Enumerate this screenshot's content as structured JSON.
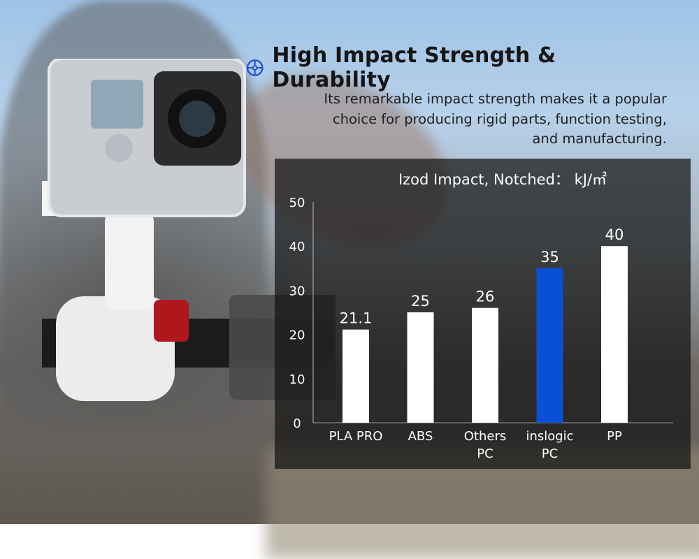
{
  "headline": {
    "text": "High Impact Strength & Durability",
    "icon": "bike-wheel-icon"
  },
  "description": {
    "lines": [
      "Its remarkable impact strength makes it a popular",
      "choice for producing rigid parts, function testing,",
      "and manufacturing."
    ]
  },
  "chart_data": {
    "type": "bar",
    "title": "Izod Impact, Notched： kJ/㎡",
    "categories": [
      [
        "PLA PRO"
      ],
      [
        "ABS"
      ],
      [
        "Others",
        "PC"
      ],
      [
        "inslogic",
        "PC"
      ],
      [
        "PP"
      ]
    ],
    "values": [
      21.1,
      25,
      26,
      35,
      40
    ],
    "value_labels": [
      "21.1",
      "25",
      "26",
      "35",
      "40"
    ],
    "highlight_index": 3,
    "ylim": [
      0,
      50
    ],
    "yticks": [
      0,
      10,
      20,
      30,
      40,
      50
    ],
    "colors": {
      "default": "#ffffff",
      "highlight": "#0a50d6"
    },
    "grid": false,
    "xlabel": "",
    "ylabel": ""
  }
}
